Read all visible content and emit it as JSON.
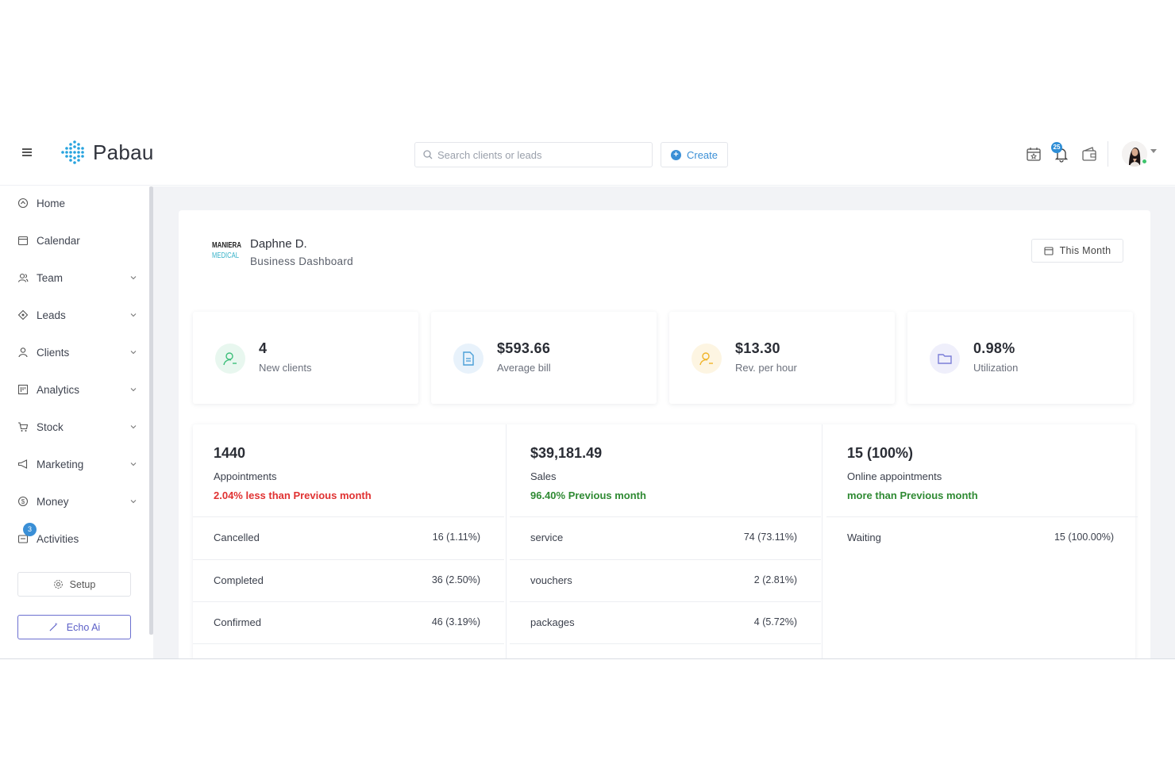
{
  "header": {
    "brand": "Pabau",
    "search_placeholder": "Search clients or leads",
    "create_label": "Create",
    "notification_count": "25"
  },
  "sidebar": {
    "items": [
      {
        "label": "Home",
        "icon": "home-icon",
        "expandable": false
      },
      {
        "label": "Calendar",
        "icon": "calendar-icon",
        "expandable": false
      },
      {
        "label": "Team",
        "icon": "team-icon",
        "expandable": true
      },
      {
        "label": "Leads",
        "icon": "leads-icon",
        "expandable": true
      },
      {
        "label": "Clients",
        "icon": "clients-icon",
        "expandable": true
      },
      {
        "label": "Analytics",
        "icon": "analytics-icon",
        "expandable": true
      },
      {
        "label": "Stock",
        "icon": "stock-icon",
        "expandable": true
      },
      {
        "label": "Marketing",
        "icon": "marketing-icon",
        "expandable": true
      },
      {
        "label": "Money",
        "icon": "money-icon",
        "expandable": true
      },
      {
        "label": "Activities",
        "icon": "activities-icon",
        "expandable": false
      }
    ],
    "activities_badge": "3",
    "setup_label": "Setup",
    "echo_label": "Echo Ai"
  },
  "dashboard": {
    "brand_logo_top": "MANIERA",
    "brand_logo_bottom": "MEDICAL",
    "owner": "Daphne D.",
    "subtitle": "Business Dashboard",
    "period": "This Month",
    "stats": [
      {
        "value": "4",
        "label": "New clients",
        "icon": "user-search-icon",
        "color": "#3dbf7a",
        "bg": "#e8f7ef"
      },
      {
        "value": "$593.66",
        "label": "Average bill",
        "icon": "document-icon",
        "color": "#4a9fd8",
        "bg": "#e8f2fb"
      },
      {
        "value": "$13.30",
        "label": "Rev. per hour",
        "icon": "user-search-icon",
        "color": "#f0b429",
        "bg": "#fdf5e2"
      },
      {
        "value": "0.98%",
        "label": "Utilization",
        "icon": "folder-icon",
        "color": "#7b7fd8",
        "bg": "#efeffb"
      }
    ],
    "columns": [
      {
        "value": "1440",
        "title": "Appointments",
        "note": "2.04% less than Previous month",
        "note_color": "#e03232",
        "rows": [
          {
            "label": "Cancelled",
            "value": "16 (1.11%)"
          },
          {
            "label": "Completed",
            "value": "36 (2.50%)"
          },
          {
            "label": "Confirmed",
            "value": "46 (3.19%)"
          }
        ]
      },
      {
        "value": "$39,181.49",
        "title": "Sales",
        "note": "96.40% Previous month",
        "note_color": "#2f8a33",
        "rows": [
          {
            "label": "service",
            "value": "74 (73.11%)"
          },
          {
            "label": "vouchers",
            "value": "2 (2.81%)"
          },
          {
            "label": "packages",
            "value": "4 (5.72%)"
          }
        ]
      },
      {
        "value": "15 (100%)",
        "title": "Online appointments",
        "note": "more than Previous month",
        "note_color": "#2f8a33",
        "rows": [
          {
            "label": "Waiting",
            "value": "15 (100.00%)"
          }
        ]
      }
    ]
  }
}
